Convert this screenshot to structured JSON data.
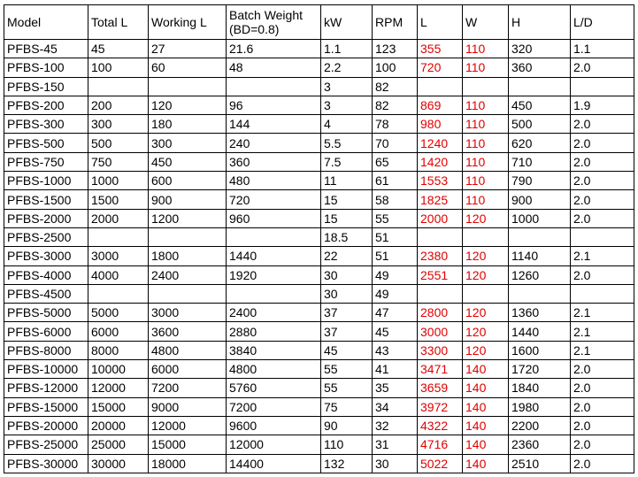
{
  "table": {
    "headers": [
      "Model",
      "Total L",
      "Working L",
      "Batch Weight (BD=0.8)",
      "kW",
      "RPM",
      "L",
      "W",
      "H",
      "L/D"
    ],
    "highlight_columns": [
      6,
      7
    ],
    "highlight_color": "#e00000",
    "rows": [
      [
        "PFBS-45",
        "45",
        "27",
        "21.6",
        "1.1",
        "123",
        "355",
        "110",
        "320",
        "1.1"
      ],
      [
        "PFBS-100",
        "100",
        "60",
        "48",
        "2.2",
        "100",
        "720",
        "110",
        "360",
        "2.0"
      ],
      [
        "PFBS-150",
        "",
        "",
        "",
        "3",
        "82",
        "",
        "",
        "",
        ""
      ],
      [
        "PFBS-200",
        "200",
        "120",
        "96",
        "3",
        "82",
        "869",
        "110",
        "450",
        "1.9"
      ],
      [
        "PFBS-300",
        "300",
        "180",
        "144",
        "4",
        "78",
        "980",
        "110",
        "500",
        "2.0"
      ],
      [
        "PFBS-500",
        "500",
        "300",
        "240",
        "5.5",
        "70",
        "1240",
        "110",
        "620",
        "2.0"
      ],
      [
        "PFBS-750",
        "750",
        "450",
        "360",
        "7.5",
        "65",
        "1420",
        "110",
        "710",
        "2.0"
      ],
      [
        "PFBS-1000",
        "1000",
        "600",
        "480",
        "11",
        "61",
        "1553",
        "110",
        "790",
        "2.0"
      ],
      [
        "PFBS-1500",
        "1500",
        "900",
        "720",
        "15",
        "58",
        "1825",
        "110",
        "900",
        "2.0"
      ],
      [
        "PFBS-2000",
        "2000",
        "1200",
        "960",
        "15",
        "55",
        "2000",
        "120",
        "1000",
        "2.0"
      ],
      [
        "PFBS-2500",
        "",
        "",
        "",
        "18.5",
        "51",
        "",
        "",
        "",
        ""
      ],
      [
        "PFBS-3000",
        "3000",
        "1800",
        "1440",
        "22",
        "51",
        "2380",
        "120",
        "1140",
        "2.1"
      ],
      [
        "PFBS-4000",
        "4000",
        "2400",
        "1920",
        "30",
        "49",
        "2551",
        "120",
        "1260",
        "2.0"
      ],
      [
        "PFBS-4500",
        "",
        "",
        "",
        "30",
        "49",
        "",
        "",
        "",
        ""
      ],
      [
        "PFBS-5000",
        "5000",
        "3000",
        "2400",
        "37",
        "47",
        "2800",
        "120",
        "1360",
        "2.1"
      ],
      [
        "PFBS-6000",
        "6000",
        "3600",
        "2880",
        "37",
        "45",
        "3000",
        "120",
        "1440",
        "2.1"
      ],
      [
        "PFBS-8000",
        "8000",
        "4800",
        "3840",
        "45",
        "43",
        "3300",
        "120",
        "1600",
        "2.1"
      ],
      [
        "PFBS-10000",
        "10000",
        "6000",
        "4800",
        "55",
        "41",
        "3471",
        "140",
        "1720",
        "2.0"
      ],
      [
        "PFBS-12000",
        "12000",
        "7200",
        "5760",
        "55",
        "35",
        "3659",
        "140",
        "1840",
        "2.0"
      ],
      [
        "PFBS-15000",
        "15000",
        "9000",
        "7200",
        "75",
        "34",
        "3972",
        "140",
        "1980",
        "2.0"
      ],
      [
        "PFBS-20000",
        "20000",
        "12000",
        "9600",
        "90",
        "32",
        "4322",
        "140",
        "2200",
        "2.0"
      ],
      [
        "PFBS-25000",
        "25000",
        "15000",
        "12000",
        "110",
        "31",
        "4716",
        "140",
        "2360",
        "2.0"
      ],
      [
        "PFBS-30000",
        "30000",
        "18000",
        "14400",
        "132",
        "30",
        "5022",
        "140",
        "2510",
        "2.0"
      ]
    ]
  }
}
